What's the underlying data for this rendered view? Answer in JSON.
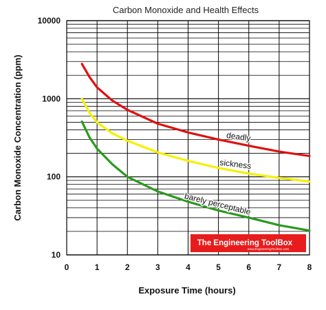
{
  "chart_data": {
    "type": "line",
    "title": "Carbon Monoxide and Health Effects",
    "xlabel": "Exposure Time (hours)",
    "ylabel": "Carbon Monoxide Concentration (ppm)",
    "xlim": [
      0,
      8
    ],
    "ylim": [
      10,
      10000
    ],
    "yscale": "log",
    "grid": true,
    "x_ticks": [
      "0",
      "1",
      "2",
      "3",
      "4",
      "5",
      "6",
      "7",
      "8"
    ],
    "y_ticks": [
      "10",
      "100",
      "1000",
      "10000"
    ],
    "series": [
      {
        "name": "deadly",
        "color": "#e01010",
        "x": [
          0.5,
          0.75,
          1,
          1.5,
          2,
          3,
          4,
          5,
          6,
          7,
          8
        ],
        "y": [
          2800,
          1900,
          1400,
          950,
          720,
          480,
          370,
          300,
          250,
          210,
          185
        ]
      },
      {
        "name": "sickness",
        "color": "#f5f000",
        "x": [
          0.5,
          0.75,
          1,
          1.5,
          2,
          3,
          4,
          5,
          6,
          7,
          8
        ],
        "y": [
          1000,
          660,
          500,
          360,
          290,
          205,
          160,
          130,
          110,
          97,
          87
        ]
      },
      {
        "name": "barely perceptable",
        "color": "#2a9a1e",
        "x": [
          0.5,
          0.75,
          1,
          1.5,
          2,
          3,
          4,
          5,
          6,
          7,
          8
        ],
        "y": [
          510,
          320,
          230,
          145,
          100,
          65,
          48,
          37,
          30,
          24,
          20.5
        ]
      }
    ],
    "watermark": {
      "text": "The Engineering ToolBox",
      "subtext": "www.EngineeringToolBox.com",
      "background": "#e81c1c"
    }
  }
}
